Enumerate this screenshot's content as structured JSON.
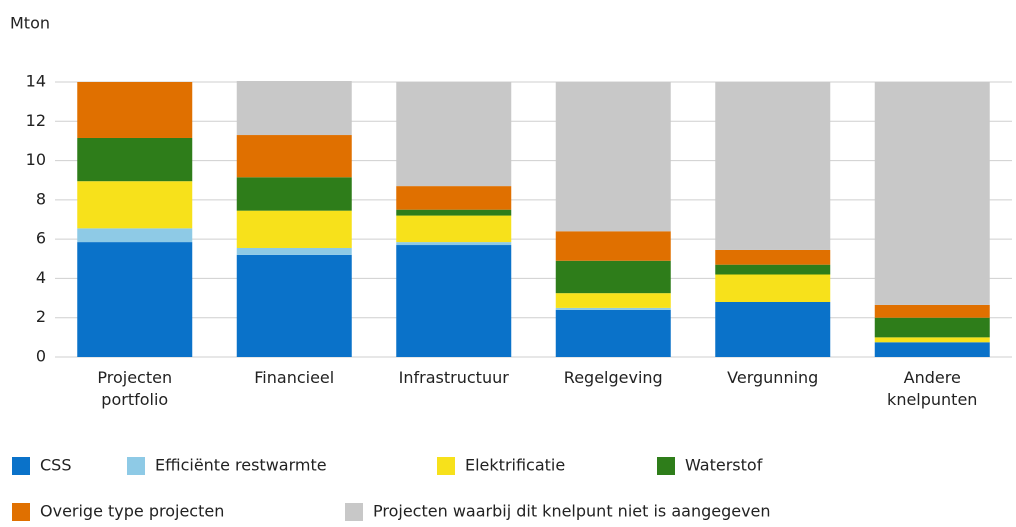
{
  "chart_data": {
    "type": "stacked_bar",
    "y_axis_label": "Mton",
    "categories": [
      "Projecten portfolio",
      "Financieel",
      "Infrastructuur",
      "Regelgeving",
      "Vergunning",
      "Andere knelpunten"
    ],
    "series": [
      {
        "name": "CSS",
        "color": "#0a72c9",
        "values": [
          5.85,
          5.2,
          5.7,
          2.4,
          2.8,
          0.75
        ]
      },
      {
        "name": "Efficiënte restwarmte",
        "color": "#8ecae6",
        "values": [
          0.7,
          0.35,
          0.15,
          0.1,
          0,
          0
        ]
      },
      {
        "name": "Elektrificatie",
        "color": "#f7e11b",
        "values": [
          2.4,
          1.9,
          1.35,
          0.75,
          1.4,
          0.25
        ]
      },
      {
        "name": "Waterstof",
        "color": "#2e7d1a",
        "values": [
          2.2,
          1.7,
          0.3,
          1.65,
          0.5,
          1.0
        ]
      },
      {
        "name": "Overige type projecten",
        "color": "#e07000",
        "values": [
          2.85,
          2.15,
          1.2,
          1.5,
          0.75,
          0.65
        ]
      },
      {
        "name": "Projecten waarbij dit knelpunt niet is aangegeven",
        "color": "#c8c8c8",
        "values": [
          0,
          2.75,
          5.3,
          7.6,
          8.55,
          11.35
        ]
      }
    ],
    "ylim": [
      0,
      14
    ],
    "yticks": [
      0,
      2,
      4,
      6,
      8,
      10,
      12,
      14
    ],
    "grid": true
  }
}
